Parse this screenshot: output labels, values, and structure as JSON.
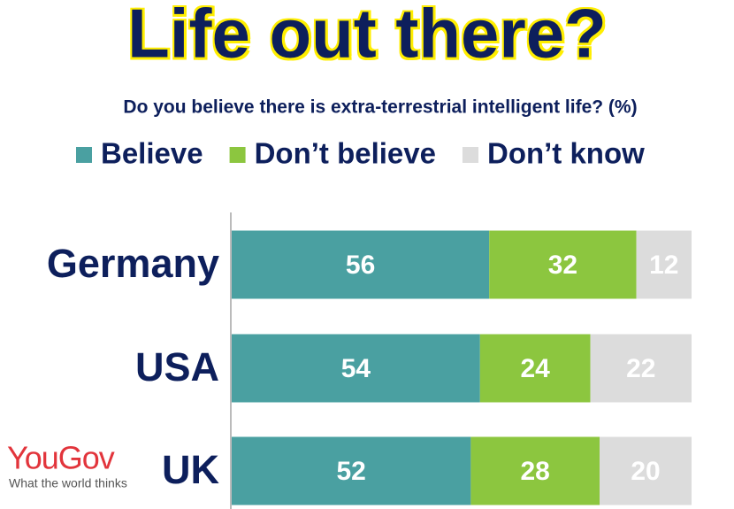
{
  "chart_data": {
    "type": "stacked-bar",
    "orientation": "horizontal",
    "title": "Life out there?",
    "subtitle": "Do you believe there is extra-terrestrial intelligent life? (%)",
    "categories": [
      "Germany",
      "USA",
      "UK"
    ],
    "series": [
      {
        "name": "Believe",
        "color": "#4aa0a1",
        "values": [
          56,
          54,
          52
        ]
      },
      {
        "name": "Don’t believe",
        "color": "#8cc63f",
        "values": [
          32,
          24,
          28
        ]
      },
      {
        "name": "Don’t know",
        "color": "#dcdcdc",
        "values": [
          12,
          22,
          20
        ]
      }
    ],
    "legend": "top"
  },
  "logo": {
    "name": "YouGov",
    "tagline": "What the world thinks"
  }
}
